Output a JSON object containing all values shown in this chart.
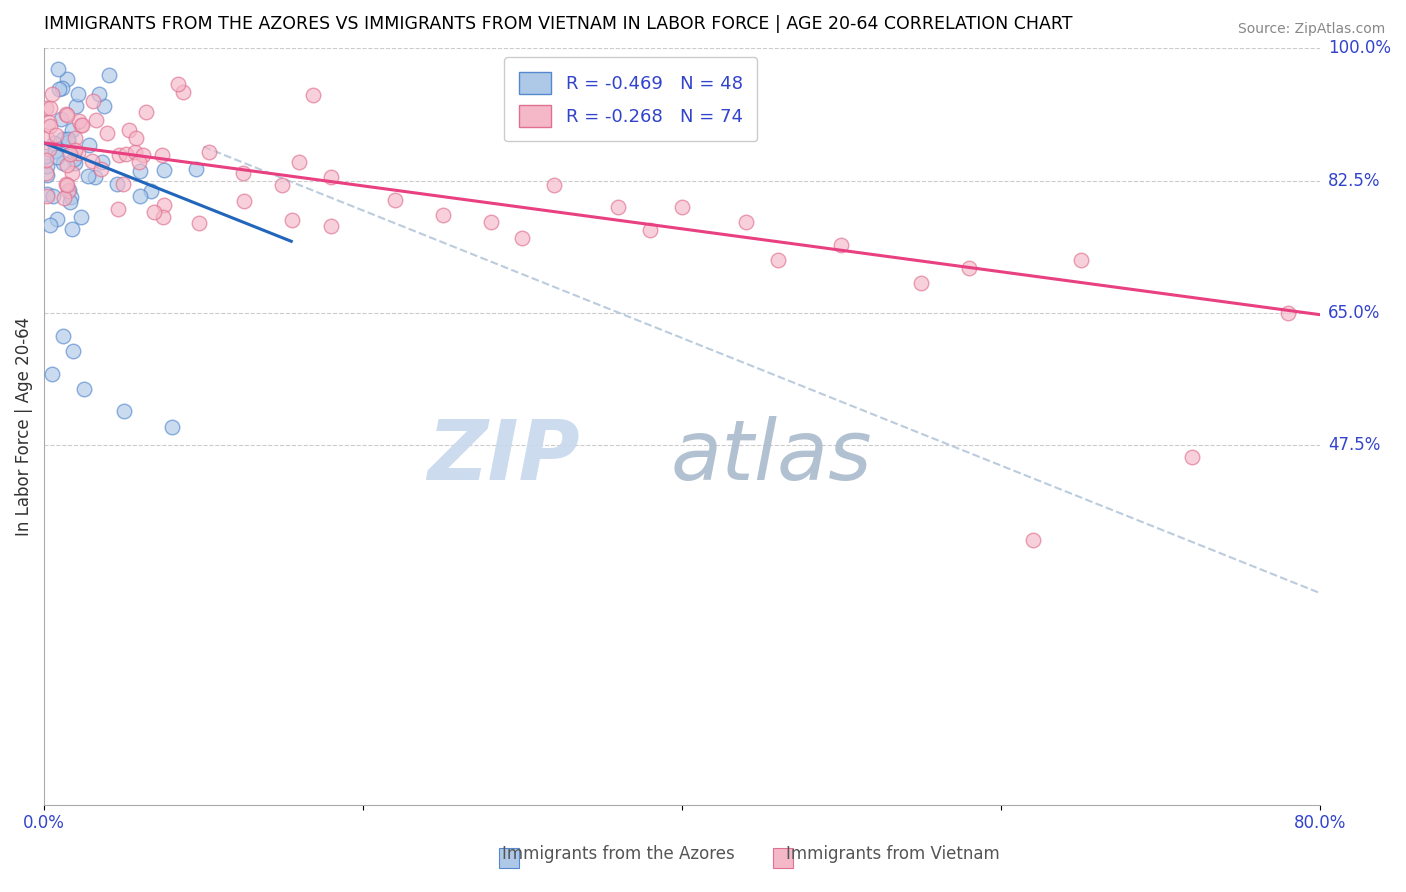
{
  "title": "IMMIGRANTS FROM THE AZORES VS IMMIGRANTS FROM VIETNAM IN LABOR FORCE | AGE 20-64 CORRELATION CHART",
  "source": "Source: ZipAtlas.com",
  "ylabel": "In Labor Force | Age 20-64",
  "xlim": [
    0.0,
    0.8
  ],
  "ylim": [
    0.0,
    1.0
  ],
  "xtick_positions": [
    0.0,
    0.2,
    0.4,
    0.6,
    0.8
  ],
  "xtick_labels": [
    "0.0%",
    "",
    "",
    "",
    "80.0%"
  ],
  "ytick_right_labels": [
    "100.0%",
    "82.5%",
    "65.0%",
    "47.5%"
  ],
  "ytick_right_vals": [
    1.0,
    0.825,
    0.65,
    0.475
  ],
  "blue_fill": "#aec9e8",
  "blue_edge": "#5588cc",
  "blue_line": "#2266bb",
  "pink_fill": "#f4b8c8",
  "pink_edge": "#e07090",
  "pink_line": "#e84080",
  "dash_color": "#bbccdd",
  "R_azores": -0.469,
  "N_azores": 48,
  "R_vietnam": -0.268,
  "N_vietnam": 74,
  "az_line_x0": 0.0,
  "az_line_x1": 0.155,
  "az_line_y0": 0.875,
  "az_line_y1": 0.745,
  "vn_line_x0": 0.0,
  "vn_line_x1": 0.8,
  "vn_line_y0": 0.875,
  "vn_line_y1": 0.648,
  "dash_line_x0": 0.1,
  "dash_line_x1": 0.8,
  "dash_line_y0": 0.87,
  "dash_line_y1": 0.28,
  "watermark_zip_color": "#c8d8ee",
  "watermark_atlas_color": "#aabbcc"
}
